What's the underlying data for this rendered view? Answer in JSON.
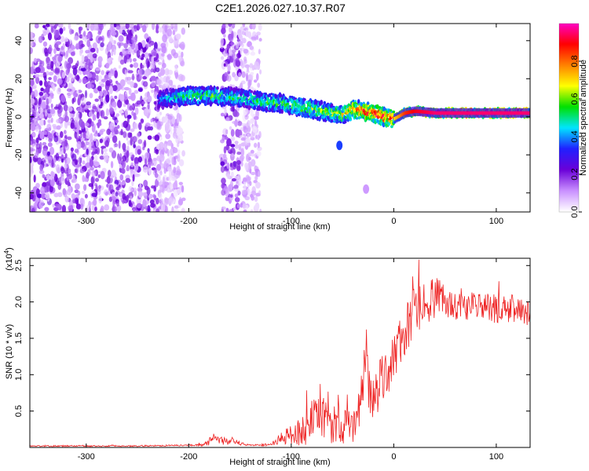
{
  "figure": {
    "title": "C2E1.2026.027.10.37.R07"
  },
  "chart_data": [
    {
      "type": "heatmap",
      "xlabel": "Height of straight line (km)",
      "ylabel": "Frequency (Hz)",
      "xlim": [
        -355,
        133
      ],
      "ylim": [
        -50,
        49
      ],
      "xticks": [
        -300,
        -200,
        -100,
        0,
        100
      ],
      "yticks": [
        -40,
        -20,
        0,
        20,
        40
      ],
      "colorbar": {
        "label": "Normalized spectral amplitude",
        "range": [
          0.0,
          1.0
        ],
        "ticks": [
          0.0,
          0.2,
          0.4,
          0.6,
          0.8
        ],
        "tick_labels": [
          "0.0",
          "0.2",
          "0.4",
          "0.6",
          "0.8"
        ]
      },
      "ridge": {
        "x": [
          -230,
          -200,
          -175,
          -150,
          -130,
          -110,
          -90,
          -70,
          -50,
          -40,
          -30,
          -20,
          -10,
          0,
          10,
          20,
          40,
          60,
          80,
          100,
          133
        ],
        "frequency": [
          9,
          11,
          11,
          10,
          8,
          7,
          5,
          3,
          1,
          4,
          3,
          2,
          0,
          -1,
          2,
          3,
          2,
          2,
          2,
          2,
          2
        ],
        "peak_amplitude": [
          0.35,
          0.5,
          0.5,
          0.45,
          0.5,
          0.5,
          0.55,
          0.55,
          0.6,
          0.7,
          0.75,
          0.8,
          0.8,
          0.7,
          0.85,
          0.9,
          0.95,
          0.95,
          0.95,
          0.95,
          0.95
        ]
      },
      "features": [
        {
          "x": -53,
          "frequency": -15,
          "amplitude": 0.35
        },
        {
          "x": -27,
          "frequency": -38,
          "amplitude": 0.1
        }
      ],
      "noise_region_x": [
        -355,
        -130
      ],
      "gap_x": [
        -205,
        -168
      ],
      "colors": [
        "#ffffff",
        "#c98fff",
        "#6a00d8",
        "#2020ff",
        "#00e5ff",
        "#00e000",
        "#ffff00",
        "#ff8000",
        "#ff0000",
        "#ff00c8"
      ]
    },
    {
      "type": "line",
      "xlabel": "Height of straight line (km)",
      "ylabel": "SNR (10 * v/v)",
      "y_multiplier": "(x10^4)",
      "xlim": [
        -355,
        133
      ],
      "ylim": [
        0,
        2.6
      ],
      "xticks": [
        -300,
        -200,
        -100,
        0,
        100
      ],
      "yticks": [
        0.5,
        1.0,
        1.5,
        2.0,
        2.5
      ],
      "ytick_labels": [
        "0.5",
        "1.0",
        "1.5",
        "2.0",
        "2.5"
      ],
      "series": [
        {
          "x": [
            -355,
            -300,
            -250,
            -200,
            -185,
            -175,
            -170,
            -160,
            -150,
            -140,
            -120,
            -110,
            -100,
            -90,
            -80,
            -70,
            -60,
            -50,
            -40,
            -35,
            -30,
            -27,
            -25,
            -20,
            -10,
            0,
            10,
            20,
            30,
            40,
            50,
            60,
            80,
            100,
            120,
            133
          ],
          "values": [
            0.02,
            0.02,
            0.02,
            0.03,
            0.04,
            0.12,
            0.1,
            0.08,
            0.06,
            0.03,
            0.04,
            0.12,
            0.18,
            0.22,
            0.35,
            0.4,
            0.35,
            0.3,
            0.25,
            0.5,
            0.85,
            1.6,
            0.75,
            0.7,
            0.95,
            1.25,
            1.55,
            1.85,
            2.0,
            2.05,
            2.0,
            1.95,
            1.95,
            1.9,
            1.9,
            1.85
          ],
          "amplitude": [
            0.01,
            0.01,
            0.01,
            0.01,
            0.02,
            0.08,
            0.06,
            0.05,
            0.03,
            0.01,
            0.02,
            0.08,
            0.15,
            0.2,
            0.3,
            0.3,
            0.3,
            0.25,
            0.25,
            0.3,
            0.35,
            0.5,
            0.35,
            0.35,
            0.35,
            0.35,
            0.35,
            0.35,
            0.3,
            0.3,
            0.25,
            0.2,
            0.2,
            0.2,
            0.2,
            0.18
          ]
        }
      ],
      "color": "#ee2222"
    }
  ]
}
